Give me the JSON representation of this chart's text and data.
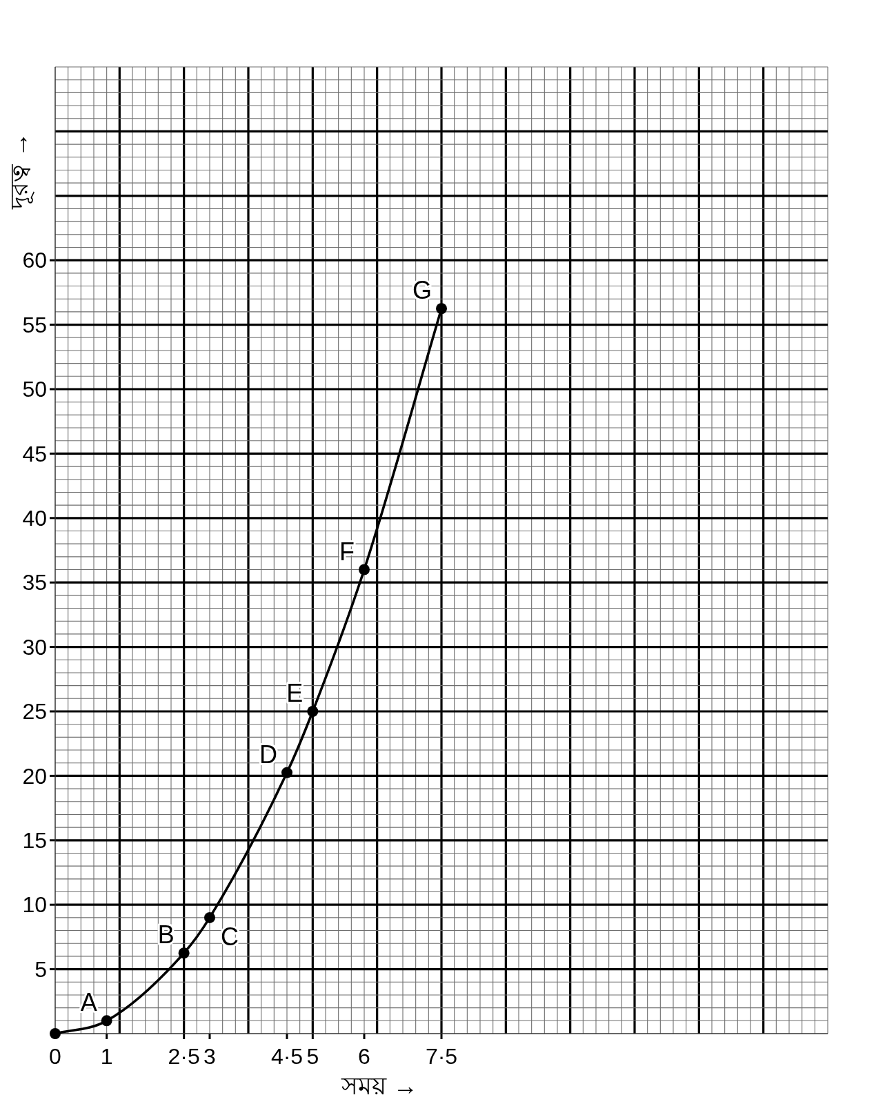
{
  "chart_data": {
    "type": "line",
    "xlabel": "সময় →",
    "ylabel": "দূরত্ব →",
    "x": [
      0,
      1,
      2.5,
      3,
      4.5,
      5,
      6,
      7.5
    ],
    "series": [
      {
        "color": "#000000",
        "values": [
          0,
          1,
          6.25,
          9,
          20.25,
          25,
          36,
          56.25
        ]
      }
    ],
    "xlim": [
      0,
      15
    ],
    "ylim": [
      0,
      75
    ],
    "xticks": [
      0,
      {
        "value": 0.25,
        "label": null
      },
      {
        "value": 0.5,
        "label": null
      },
      {
        "value": 0.75,
        "label": null
      },
      1,
      {
        "value": 1.25,
        "label": null
      },
      {
        "value": 1.5,
        "label": null
      },
      {
        "value": 1.75,
        "label": null
      },
      {
        "value": 2,
        "label": null
      },
      {
        "value": 2.25,
        "label": null
      },
      {
        "value": 2.5,
        "label": "2·5"
      },
      {
        "value": 2.75,
        "label": null
      },
      3,
      {
        "value": 3.25,
        "label": null
      },
      {
        "value": 3.5,
        "label": null
      },
      {
        "value": 3.75,
        "label": null
      },
      {
        "value": 4,
        "label": null
      },
      {
        "value": 4.25,
        "label": null
      },
      {
        "value": 4.5,
        "label": "4·5"
      },
      {
        "value": 4.75,
        "label": null
      },
      5,
      {
        "value": 5.25,
        "label": null
      },
      {
        "value": 5.5,
        "label": null
      },
      {
        "value": 5.75,
        "label": null
      },
      6,
      {
        "value": 6.25,
        "label": null
      },
      {
        "value": 6.5,
        "label": null
      },
      {
        "value": 6.75,
        "label": null
      },
      {
        "value": 7,
        "label": null
      },
      {
        "value": 7.25,
        "label": null
      },
      {
        "value": 7.5,
        "label": "7·5"
      },
      {
        "value": 7.75,
        "label": null
      },
      {
        "value": 8,
        "label": null
      },
      {
        "value": 8.25,
        "label": null
      },
      {
        "value": 8.5,
        "label": null
      },
      {
        "value": 8.75,
        "label": null
      },
      {
        "value": 9,
        "label": null
      },
      {
        "value": 9.25,
        "label": null
      },
      {
        "value": 9.5,
        "label": null
      },
      {
        "value": 9.75,
        "label": null
      },
      {
        "value": 10,
        "label": null
      },
      {
        "value": 10.25,
        "label": null
      },
      {
        "value": 10.5,
        "label": null
      },
      {
        "value": 10.75,
        "label": null
      },
      {
        "value": 11,
        "label": null
      },
      {
        "value": 11.25,
        "label": null
      },
      {
        "value": 11.5,
        "label": null
      },
      {
        "value": 11.75,
        "label": null
      },
      {
        "value": 12,
        "label": null
      },
      {
        "value": 12.25,
        "label": null
      },
      {
        "value": 12.5,
        "label": null
      },
      {
        "value": 12.75,
        "label": null
      },
      {
        "value": 13,
        "label": null
      },
      {
        "value": 13.25,
        "label": null
      },
      {
        "value": 13.5,
        "label": null
      },
      {
        "value": 13.75,
        "label": null
      },
      {
        "value": 14,
        "label": null
      },
      {
        "value": 14.25,
        "label": null
      },
      {
        "value": 14.5,
        "label": null
      },
      {
        "value": 14.75,
        "label": null
      },
      {
        "value": 15,
        "label": null
      }
    ],
    "yticks": [
      {
        "value": 0,
        "label": null
      },
      {
        "value": 1,
        "label": null
      },
      {
        "value": 2,
        "label": null
      },
      {
        "value": 3,
        "label": null
      },
      {
        "value": 4,
        "label": null
      },
      5,
      {
        "value": 6,
        "label": null
      },
      {
        "value": 7,
        "label": null
      },
      {
        "value": 8,
        "label": null
      },
      {
        "value": 9,
        "label": null
      },
      10,
      {
        "value": 11,
        "label": null
      },
      {
        "value": 12,
        "label": null
      },
      {
        "value": 13,
        "label": null
      },
      {
        "value": 14,
        "label": null
      },
      15,
      {
        "value": 16,
        "label": null
      },
      {
        "value": 17,
        "label": null
      },
      {
        "value": 18,
        "label": null
      },
      {
        "value": 19,
        "label": null
      },
      20,
      {
        "value": 21,
        "label": null
      },
      {
        "value": 22,
        "label": null
      },
      {
        "value": 23,
        "label": null
      },
      {
        "value": 24,
        "label": null
      },
      25,
      {
        "value": 26,
        "label": null
      },
      {
        "value": 27,
        "label": null
      },
      {
        "value": 28,
        "label": null
      },
      {
        "value": 29,
        "label": null
      },
      30,
      {
        "value": 31,
        "label": null
      },
      {
        "value": 32,
        "label": null
      },
      {
        "value": 33,
        "label": null
      },
      {
        "value": 34,
        "label": null
      },
      35,
      {
        "value": 36,
        "label": null
      },
      {
        "value": 37,
        "label": null
      },
      {
        "value": 38,
        "label": null
      },
      {
        "value": 39,
        "label": null
      },
      40,
      {
        "value": 41,
        "label": null
      },
      {
        "value": 42,
        "label": null
      },
      {
        "value": 43,
        "label": null
      },
      {
        "value": 44,
        "label": null
      },
      45,
      {
        "value": 46,
        "label": null
      },
      {
        "value": 47,
        "label": null
      },
      {
        "value": 48,
        "label": null
      },
      {
        "value": 49,
        "label": null
      },
      50,
      {
        "value": 51,
        "label": null
      },
      {
        "value": 52,
        "label": null
      },
      {
        "value": 53,
        "label": null
      },
      {
        "value": 54,
        "label": null
      },
      55,
      {
        "value": 56,
        "label": null
      },
      {
        "value": 57,
        "label": null
      },
      {
        "value": 58,
        "label": null
      },
      {
        "value": 59,
        "label": null
      },
      60,
      {
        "value": 61,
        "label": null
      },
      {
        "value": 62,
        "label": null
      },
      {
        "value": 63,
        "label": null
      },
      {
        "value": 64,
        "label": null
      },
      {
        "value": 65,
        "label": null
      },
      {
        "value": 66,
        "label": null
      },
      {
        "value": 67,
        "label": null
      },
      {
        "value": 68,
        "label": null
      },
      {
        "value": 69,
        "label": null
      },
      {
        "value": 70,
        "label": null
      },
      {
        "value": 71,
        "label": null
      },
      {
        "value": 72,
        "label": null
      },
      {
        "value": 73,
        "label": null
      },
      {
        "value": 74,
        "label": null
      },
      {
        "value": 75,
        "label": null
      }
    ],
    "grid": true,
    "marker": "circle",
    "line_style": "solid",
    "annotations": [
      {
        "text": "A",
        "x": 1,
        "y": 1
      },
      {
        "text": "B",
        "x": 2.5,
        "y": 6.25
      },
      {
        "text": "C",
        "x": 3,
        "y": 9
      },
      {
        "text": "D",
        "x": 4.5,
        "y": 20.25
      },
      {
        "text": "E",
        "x": 5,
        "y": 25
      },
      {
        "text": "F",
        "x": 6,
        "y": 36
      },
      {
        "text": "G",
        "x": 7.5,
        "y": 56.25
      }
    ]
  }
}
